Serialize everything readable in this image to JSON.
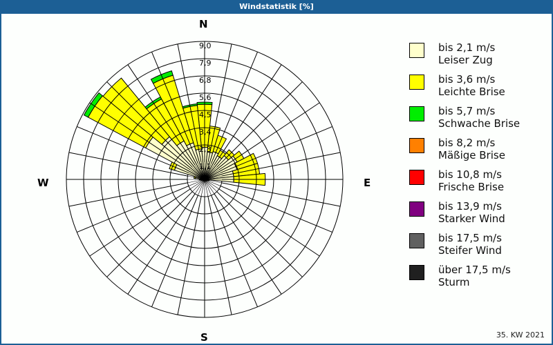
{
  "title": "Windstatistik [%]",
  "footer": "35. KW 2021",
  "compass": {
    "n": "N",
    "e": "E",
    "s": "S",
    "w": "W"
  },
  "legend": [
    {
      "line1": "bis 2,1 m/s",
      "line2": "Leiser Zug",
      "color": "#ffffcc"
    },
    {
      "line1": "bis 3,6 m/s",
      "line2": "Leichte Brise",
      "color": "#ffff00"
    },
    {
      "line1": "bis 5,7 m/s",
      "line2": "Schwache Brise",
      "color": "#00ee00"
    },
    {
      "line1": "bis 8,2 m/s",
      "line2": "Mäßige Brise",
      "color": "#ff8000"
    },
    {
      "line1": "bis 10,8 m/s",
      "line2": "Frische Brise",
      "color": "#ff0000"
    },
    {
      "line1": "bis 13,9 m/s",
      "line2": "Starker Wind",
      "color": "#800080"
    },
    {
      "line1": "bis 17,5 m/s",
      "line2": "Steifer Wind",
      "color": "#606060"
    },
    {
      "line1": "über 17,5 m/s",
      "line2": "Sturm",
      "color": "#202020"
    }
  ],
  "chart_data": {
    "type": "wind-rose",
    "title": "Windstatistik [%]",
    "subtitle": "35. KW 2021",
    "unit": "%",
    "directions": 32,
    "direction_step_deg": 11.25,
    "compass_labels": [
      "N",
      "E",
      "S",
      "W"
    ],
    "ring_labels": [
      "1,1",
      "2,3",
      "3,4",
      "4,5",
      "5,6",
      "6,8",
      "7,9",
      "9,0"
    ],
    "rmax": 9.0,
    "grid": true,
    "legend_position": "right",
    "series": [
      {
        "name": "bis 2,1 m/s (Leiser Zug)",
        "color": "#ffffcc",
        "values": [
          2.1,
          1.8,
          1.9,
          1.75,
          2.0,
          2.4,
          2.2,
          1.9,
          1.9,
          0.2,
          0.15,
          0.1,
          0.1,
          0.1,
          0.1,
          0.1,
          0.1,
          0.1,
          0.1,
          0.1,
          0.1,
          0.1,
          0.15,
          0.2,
          0.3,
          0.6,
          2.05,
          4.35,
          3.6,
          2.85,
          2.5,
          2.0
        ]
      },
      {
        "name": "bis 3,6 m/s (Leichte Brise)",
        "color": "#ffff00",
        "values": [
          2.8,
          1.7,
          1.1,
          0.4,
          0.5,
          0.5,
          1.4,
          1.7,
          2.05,
          0.1,
          0.05,
          0.05,
          0.0,
          0.0,
          0.0,
          0.0,
          0.0,
          0.0,
          0.0,
          0.0,
          0.0,
          0.0,
          0.0,
          0.05,
          0.05,
          0.1,
          0.35,
          4.25,
          4.95,
          3.1,
          4.6,
          2.85
        ]
      },
      {
        "name": "bis 5,7 m/s (Schwache Brise)",
        "color": "#00ee00",
        "values": [
          0.14,
          0,
          0,
          0,
          0,
          0,
          0,
          0,
          0,
          0,
          0,
          0,
          0,
          0,
          0,
          0,
          0,
          0,
          0,
          0,
          0,
          0,
          0,
          0,
          0,
          0,
          0,
          0.3,
          0,
          0.15,
          0.3,
          0.1
        ]
      },
      {
        "name": "bis 8,2 m/s (Mäßige Brise)",
        "color": "#ff8000",
        "values": [
          0,
          0,
          0,
          0,
          0,
          0,
          0,
          0,
          0,
          0,
          0,
          0,
          0,
          0,
          0,
          0,
          0,
          0,
          0,
          0,
          0,
          0,
          0,
          0,
          0,
          0,
          0,
          0,
          0,
          0,
          0,
          0
        ]
      },
      {
        "name": "bis 10,8 m/s (Frische Brise)",
        "color": "#ff0000",
        "values": [
          0,
          0,
          0,
          0,
          0,
          0,
          0,
          0,
          0,
          0,
          0,
          0,
          0,
          0,
          0,
          0,
          0,
          0,
          0,
          0,
          0,
          0,
          0,
          0,
          0,
          0,
          0,
          0,
          0,
          0,
          0,
          0
        ]
      },
      {
        "name": "bis 13,9 m/s (Starker Wind)",
        "color": "#800080",
        "values": [
          0,
          0,
          0,
          0,
          0,
          0,
          0,
          0,
          0,
          0,
          0,
          0,
          0,
          0,
          0,
          0,
          0,
          0,
          0,
          0,
          0,
          0,
          0,
          0,
          0,
          0,
          0,
          0,
          0,
          0,
          0,
          0
        ]
      },
      {
        "name": "bis 17,5 m/s (Steifer Wind)",
        "color": "#606060",
        "values": [
          0,
          0,
          0,
          0,
          0,
          0,
          0,
          0,
          0,
          0,
          0,
          0,
          0,
          0,
          0,
          0,
          0,
          0,
          0,
          0,
          0,
          0,
          0,
          0,
          0,
          0,
          0,
          0,
          0,
          0,
          0,
          0
        ]
      },
      {
        "name": "über 17,5 m/s (Sturm)",
        "color": "#202020",
        "values": [
          0,
          0,
          0,
          0,
          0,
          0,
          0,
          0,
          0,
          0,
          0,
          0,
          0,
          0,
          0,
          0,
          0,
          0,
          0,
          0,
          0,
          0,
          0,
          0,
          0,
          0,
          0,
          0,
          0,
          0,
          0,
          0
        ]
      }
    ]
  }
}
